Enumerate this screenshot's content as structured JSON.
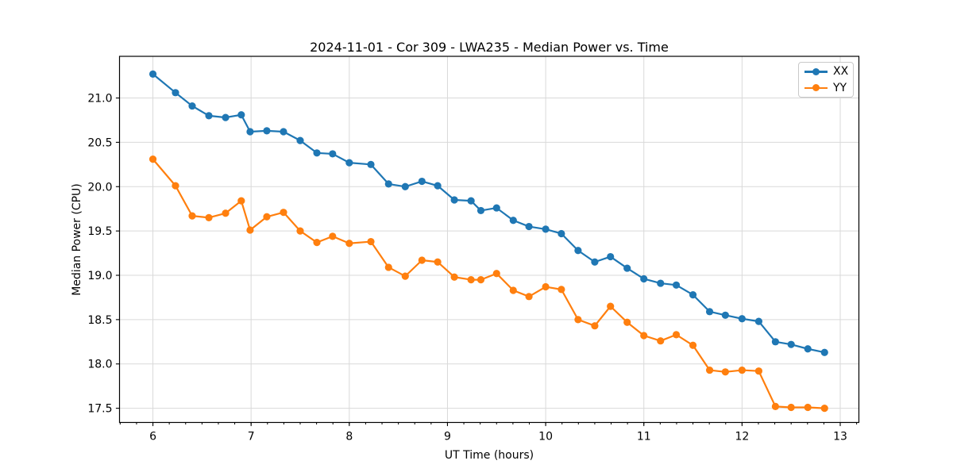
{
  "chart_data": {
    "type": "line",
    "title": "2024-11-01 - Cor 309 - LWA235 - Median Power vs. Time",
    "xlabel": "UT Time (hours)",
    "ylabel": "Median Power (CPU)",
    "xlim": [
      5.66,
      13.19
    ],
    "ylim": [
      17.34,
      21.47
    ],
    "x_ticks": [
      6,
      7,
      8,
      9,
      10,
      11,
      12,
      13
    ],
    "x_minor_tick_step": 0.166667,
    "y_ticks": [
      17.5,
      18.0,
      18.5,
      19.0,
      19.5,
      20.0,
      20.5,
      21.0
    ],
    "grid": true,
    "grid_color": "#d9d9d9",
    "legend_position": "upper right",
    "x": [
      6.0,
      6.23,
      6.4,
      6.57,
      6.74,
      6.9,
      6.99,
      7.16,
      7.33,
      7.5,
      7.67,
      7.83,
      8.0,
      8.22,
      8.4,
      8.57,
      8.74,
      8.9,
      9.07,
      9.24,
      9.34,
      9.5,
      9.67,
      9.83,
      10.0,
      10.16,
      10.33,
      10.5,
      10.66,
      10.83,
      11.0,
      11.17,
      11.33,
      11.5,
      11.67,
      11.83,
      12.0,
      12.17,
      12.34,
      12.5,
      12.67,
      12.84
    ],
    "series": [
      {
        "name": "XX",
        "color": "#1f77b4",
        "values": [
          21.27,
          21.06,
          20.91,
          20.8,
          20.78,
          20.81,
          20.62,
          20.63,
          20.62,
          20.52,
          20.38,
          20.37,
          20.27,
          20.25,
          20.03,
          20.0,
          20.06,
          20.01,
          19.85,
          19.84,
          19.73,
          19.76,
          19.62,
          19.55,
          19.52,
          19.47,
          19.28,
          19.15,
          19.21,
          19.08,
          18.96,
          18.91,
          18.89,
          18.78,
          18.59,
          18.55,
          18.51,
          18.48,
          18.25,
          18.22,
          18.17,
          18.13
        ]
      },
      {
        "name": "YY",
        "color": "#ff7f0e",
        "values": [
          20.31,
          20.01,
          19.67,
          19.65,
          19.7,
          19.84,
          19.51,
          19.66,
          19.71,
          19.5,
          19.37,
          19.44,
          19.36,
          19.38,
          19.09,
          18.99,
          19.17,
          19.15,
          18.98,
          18.95,
          18.95,
          19.02,
          18.83,
          18.76,
          18.87,
          18.84,
          18.5,
          18.43,
          18.65,
          18.47,
          18.32,
          18.26,
          18.33,
          18.21,
          17.93,
          17.91,
          17.93,
          17.92,
          17.52,
          17.51,
          17.51,
          17.5
        ]
      }
    ]
  }
}
